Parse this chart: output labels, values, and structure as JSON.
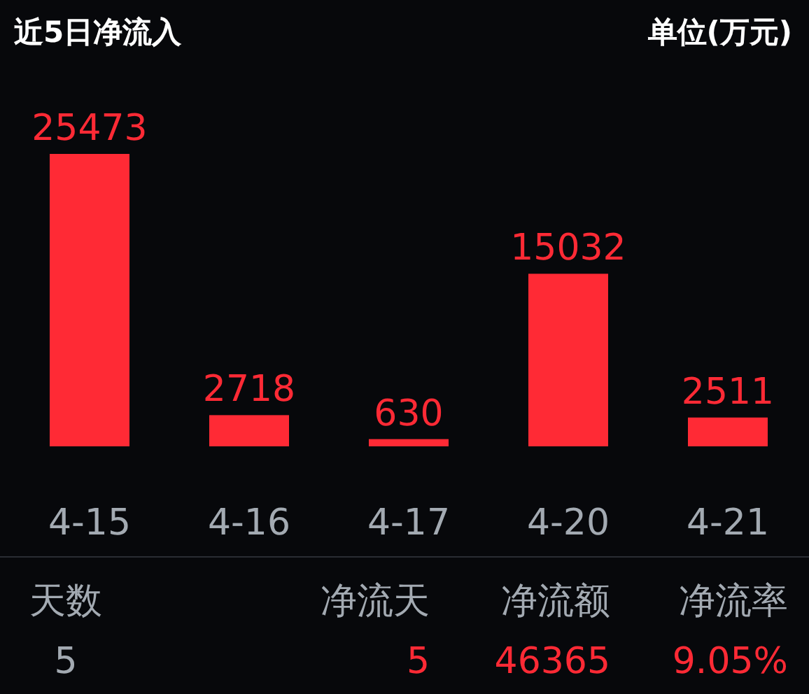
{
  "chart_data": {
    "type": "bar",
    "title": "近5日净流入",
    "ylabel": "单位(万元)",
    "categories": [
      "4-15",
      "4-16",
      "4-17",
      "4-20",
      "4-21"
    ],
    "values": [
      25473,
      2718,
      630,
      15032,
      2511
    ],
    "color": "#ff2a35",
    "data_labels": true,
    "annotations": [
      "天数",
      "5",
      "净流天",
      "5",
      "净流额",
      "46365",
      "净流率",
      "9.05%"
    ]
  }
}
